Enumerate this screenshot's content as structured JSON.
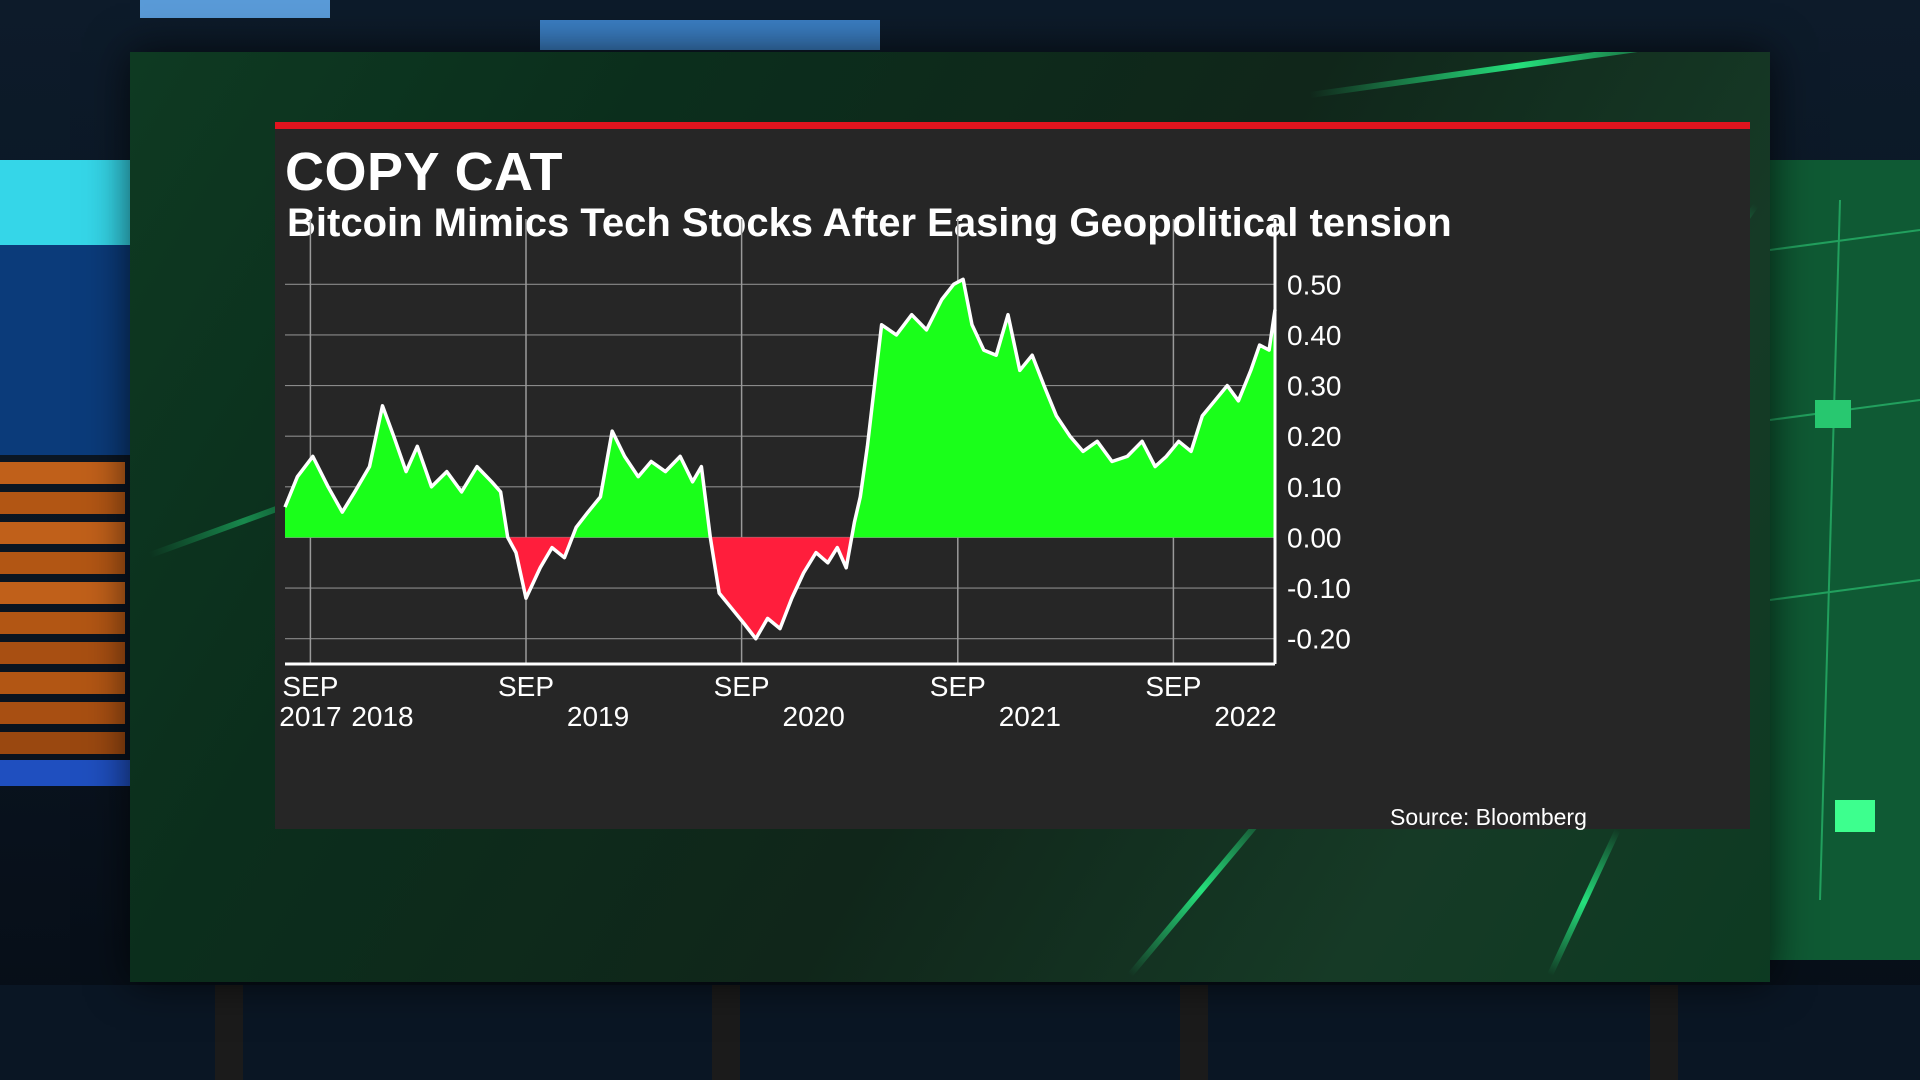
{
  "title": "COPY CAT",
  "subtitle": "Bitcoin Mimics Tech Stocks After Easing Geopolitical tension",
  "source": "Source: Bloomberg",
  "colors": {
    "positive": "#1aff1a",
    "negative": "#ff1e3c",
    "line": "#ffffff",
    "panel": "#262626",
    "accent": "#e0141e"
  },
  "chart_data": {
    "type": "area",
    "title": "COPY CAT",
    "subtitle": "Bitcoin Mimics Tech Stocks After Easing Geopolitical tension",
    "xlabel": "",
    "ylabel": "",
    "ylim": [
      -0.25,
      0.55
    ],
    "yticks": [
      0.5,
      0.4,
      0.3,
      0.2,
      0.1,
      0.0,
      -0.1,
      -0.2
    ],
    "ytick_labels": [
      "0.50",
      "0.40",
      "0.30",
      "0.20",
      "0.10",
      "0.00",
      "-0.10",
      "-0.20"
    ],
    "xlim": [
      "2017-07-20",
      "2022-02-20"
    ],
    "xticks": [
      {
        "date": "2017-09-01",
        "line1": "SEP",
        "line2": "2017"
      },
      {
        "date": "2018-01-01",
        "line1": "",
        "line2": "2018"
      },
      {
        "date": "2018-09-01",
        "line1": "SEP",
        "line2": ""
      },
      {
        "date": "2019-01-01",
        "line1": "",
        "line2": "2019"
      },
      {
        "date": "2019-09-01",
        "line1": "SEP",
        "line2": ""
      },
      {
        "date": "2020-01-01",
        "line1": "",
        "line2": "2020"
      },
      {
        "date": "2020-09-01",
        "line1": "SEP",
        "line2": ""
      },
      {
        "date": "2021-01-01",
        "line1": "",
        "line2": "2021"
      },
      {
        "date": "2021-09-01",
        "line1": "SEP",
        "line2": ""
      },
      {
        "date": "2022-01-01",
        "line1": "",
        "line2": "2022"
      }
    ],
    "grid": true,
    "legend": "none",
    "series": [
      {
        "x": [
          "2017-07-20",
          "2017-08-10",
          "2017-09-05",
          "2017-10-01",
          "2017-10-25",
          "2017-11-15",
          "2017-12-10",
          "2018-01-01",
          "2018-01-20",
          "2018-02-10",
          "2018-03-01",
          "2018-03-25",
          "2018-04-20",
          "2018-05-15",
          "2018-06-10",
          "2018-07-05",
          "2018-07-20",
          "2018-08-01",
          "2018-08-15",
          "2018-09-01",
          "2018-09-25",
          "2018-10-15",
          "2018-11-05",
          "2018-11-25",
          "2018-12-15",
          "2019-01-05",
          "2019-01-25",
          "2019-02-15",
          "2019-03-10",
          "2019-04-01",
          "2019-04-25",
          "2019-05-20",
          "2019-06-10",
          "2019-06-25",
          "2019-07-10",
          "2019-07-25",
          "2019-08-15",
          "2019-09-05",
          "2019-09-25",
          "2019-10-15",
          "2019-11-05",
          "2019-11-25",
          "2019-12-15",
          "2020-01-05",
          "2020-01-25",
          "2020-02-10",
          "2020-02-25",
          "2020-03-10",
          "2020-03-20",
          "2020-04-01",
          "2020-04-25",
          "2020-05-20",
          "2020-06-15",
          "2020-07-10",
          "2020-08-05",
          "2020-08-25",
          "2020-09-10",
          "2020-09-25",
          "2020-10-15",
          "2020-11-05",
          "2020-11-25",
          "2020-12-15",
          "2021-01-05",
          "2021-01-25",
          "2021-02-15",
          "2021-03-10",
          "2021-04-01",
          "2021-04-25",
          "2021-05-20",
          "2021-06-15",
          "2021-07-10",
          "2021-08-01",
          "2021-08-20",
          "2021-09-10",
          "2021-10-01",
          "2021-10-20",
          "2021-11-10",
          "2021-12-01",
          "2021-12-20",
          "2022-01-10",
          "2022-01-25",
          "2022-02-10",
          "2022-02-20"
        ],
        "y": [
          0.06,
          0.12,
          0.16,
          0.1,
          0.05,
          0.09,
          0.14,
          0.26,
          0.2,
          0.13,
          0.18,
          0.1,
          0.13,
          0.09,
          0.14,
          0.11,
          0.09,
          0.0,
          -0.03,
          -0.12,
          -0.06,
          -0.02,
          -0.04,
          0.02,
          0.05,
          0.08,
          0.21,
          0.16,
          0.12,
          0.15,
          0.13,
          0.16,
          0.11,
          0.14,
          0.0,
          -0.11,
          -0.14,
          -0.17,
          -0.2,
          -0.16,
          -0.18,
          -0.12,
          -0.07,
          -0.03,
          -0.05,
          -0.02,
          -0.06,
          0.03,
          0.08,
          0.18,
          0.42,
          0.4,
          0.44,
          0.41,
          0.47,
          0.5,
          0.51,
          0.42,
          0.37,
          0.36,
          0.44,
          0.33,
          0.36,
          0.3,
          0.24,
          0.2,
          0.17,
          0.19,
          0.15,
          0.16,
          0.19,
          0.14,
          0.16,
          0.19,
          0.17,
          0.24,
          0.27,
          0.3,
          0.27,
          0.33,
          0.38,
          0.37,
          0.45
        ]
      }
    ]
  }
}
